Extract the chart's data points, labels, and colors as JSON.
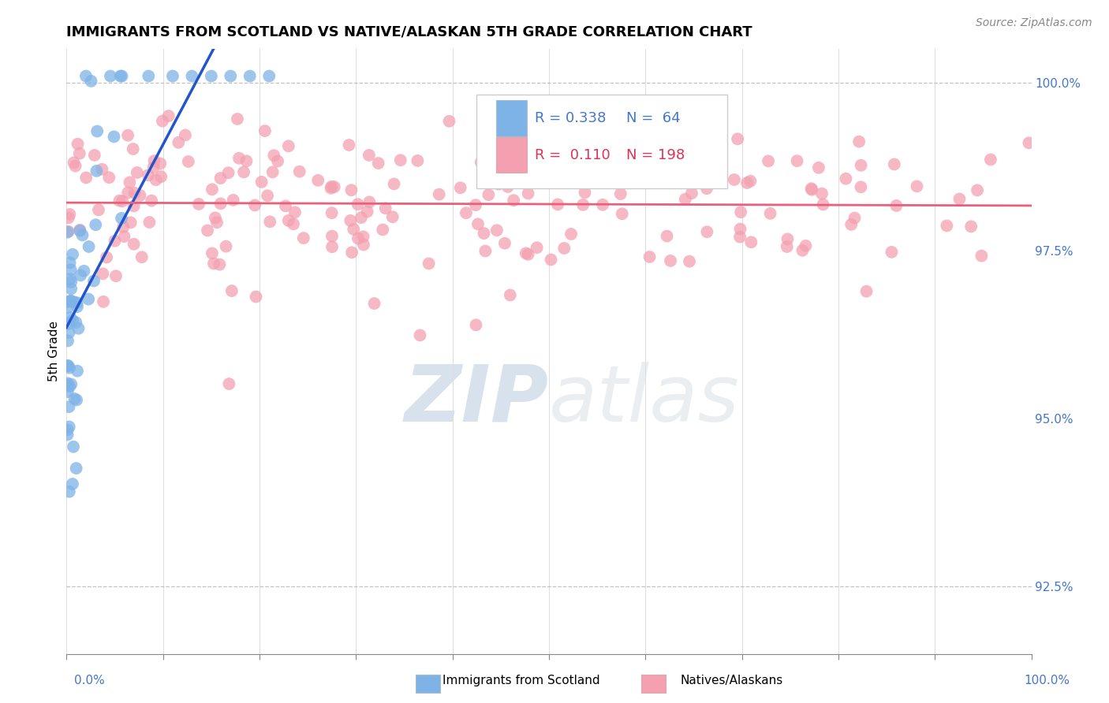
{
  "title": "IMMIGRANTS FROM SCOTLAND VS NATIVE/ALASKAN 5TH GRADE CORRELATION CHART",
  "source_text": "Source: ZipAtlas.com",
  "ylabel": "5th Grade",
  "xlim": [
    0.0,
    1.0
  ],
  "ylim": [
    0.915,
    1.005
  ],
  "yticks": [
    0.925,
    0.95,
    0.975,
    1.0
  ],
  "ytick_labels": [
    "92.5%",
    "95.0%",
    "97.5%",
    "100.0%"
  ],
  "legend_r_blue": "R = 0.338",
  "legend_n_blue": "N =  64",
  "legend_r_pink": "R =  0.110",
  "legend_n_pink": "N = 198",
  "blue_color": "#7EB3E8",
  "pink_color": "#F4A0B0",
  "blue_line_color": "#2255CC",
  "pink_line_color": "#E8607A",
  "tick_color": "#4477CC",
  "watermark_color": "#C8D8E8",
  "background_color": "#FFFFFF",
  "title_fontsize": 13,
  "source_fontsize": 10,
  "tick_fontsize": 11,
  "legend_fontsize": 13
}
